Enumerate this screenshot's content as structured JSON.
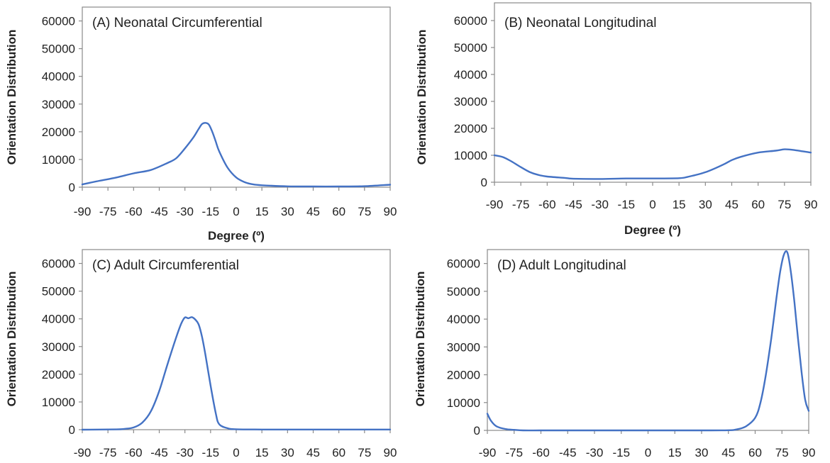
{
  "colors": {
    "series": "#4472C4",
    "axis": "#8a8a8a",
    "text": "#222222"
  },
  "chart_data": [
    {
      "type": "line",
      "title": "(A) Neonatal Circumferential",
      "xlabel": "Degree (º)",
      "ylabel": "Orientation Distribution",
      "xlim": [
        -90,
        90
      ],
      "ylim": [
        0,
        65000
      ],
      "xticks": [
        -90,
        -75,
        -60,
        -45,
        -30,
        -15,
        0,
        15,
        30,
        45,
        60,
        75,
        90
      ],
      "yticks": [
        0,
        10000,
        20000,
        30000,
        40000,
        50000,
        60000
      ],
      "x": [
        -90,
        -80,
        -70,
        -60,
        -50,
        -40,
        -35,
        -30,
        -25,
        -22,
        -20,
        -18,
        -16,
        -14,
        -12,
        -10,
        -5,
        0,
        5,
        10,
        15,
        30,
        45,
        60,
        75,
        90
      ],
      "y": [
        1000,
        2300,
        3500,
        5000,
        6200,
        8800,
        10500,
        14000,
        18000,
        21000,
        22800,
        23200,
        22600,
        20000,
        16500,
        13000,
        7000,
        3500,
        1800,
        1000,
        700,
        300,
        250,
        250,
        350,
        900
      ]
    },
    {
      "type": "line",
      "title": "(B) Neonatal Longitudinal",
      "xlabel": "Degree (º)",
      "ylabel": "Orientation Distribution",
      "xlim": [
        -90,
        90
      ],
      "ylim": [
        0,
        65000
      ],
      "xticks": [
        -90,
        -75,
        -60,
        -45,
        -30,
        -15,
        0,
        15,
        30,
        45,
        60,
        75,
        90
      ],
      "yticks": [
        0,
        10000,
        20000,
        30000,
        40000,
        50000,
        60000
      ],
      "x": [
        -90,
        -85,
        -80,
        -75,
        -70,
        -65,
        -60,
        -50,
        -45,
        -30,
        -15,
        0,
        15,
        20,
        30,
        40,
        45,
        50,
        60,
        70,
        75,
        80,
        90
      ],
      "y": [
        10000,
        9300,
        7600,
        5600,
        3800,
        2700,
        2100,
        1600,
        1300,
        1200,
        1400,
        1400,
        1500,
        2000,
        3700,
        6500,
        8200,
        9400,
        11000,
        11700,
        12200,
        12000,
        11000
      ]
    },
    {
      "type": "line",
      "title": "(C) Adult Circumferential",
      "xlabel": "",
      "ylabel": "Orientation Distribution",
      "xlim": [
        -90,
        90
      ],
      "ylim": [
        0,
        65000
      ],
      "xticks": [
        -90,
        -75,
        -60,
        -45,
        -30,
        -15,
        0,
        15,
        30,
        45,
        60,
        75,
        90
      ],
      "yticks": [
        0,
        10000,
        20000,
        30000,
        40000,
        50000,
        60000
      ],
      "x": [
        -90,
        -70,
        -65,
        -60,
        -55,
        -50,
        -45,
        -40,
        -35,
        -32,
        -30,
        -28,
        -26,
        -24,
        -22,
        -20,
        -18,
        -15,
        -12,
        -10,
        -5,
        0,
        15,
        30,
        45,
        60,
        75,
        90
      ],
      "y": [
        0,
        100,
        300,
        800,
        2500,
        6500,
        14000,
        24000,
        33500,
        38500,
        40500,
        40200,
        40600,
        39800,
        38000,
        33500,
        27000,
        16000,
        6000,
        2000,
        500,
        150,
        50,
        50,
        50,
        50,
        50,
        50
      ]
    },
    {
      "type": "line",
      "title": "(D) Adult Longitudinal",
      "xlabel": "",
      "ylabel": "Orientation Distribution",
      "xlim": [
        -90,
        90
      ],
      "ylim": [
        0,
        65000
      ],
      "xticks": [
        -90,
        -75,
        -60,
        -45,
        -30,
        -15,
        0,
        15,
        30,
        45,
        60,
        75,
        90
      ],
      "yticks": [
        0,
        10000,
        20000,
        30000,
        40000,
        50000,
        60000
      ],
      "x": [
        -90,
        -88,
        -85,
        -80,
        -75,
        -70,
        -60,
        -45,
        -30,
        -15,
        0,
        15,
        30,
        45,
        50,
        55,
        60,
        63,
        66,
        69,
        72,
        74,
        76,
        78,
        80,
        82,
        84,
        86,
        88,
        90
      ],
      "y": [
        6000,
        3500,
        1500,
        500,
        200,
        0,
        0,
        0,
        0,
        0,
        0,
        0,
        0,
        50,
        400,
        1500,
        4500,
        10000,
        20000,
        33000,
        48000,
        57000,
        63000,
        64000,
        57000,
        46000,
        33000,
        21000,
        11000,
        7000
      ]
    }
  ]
}
